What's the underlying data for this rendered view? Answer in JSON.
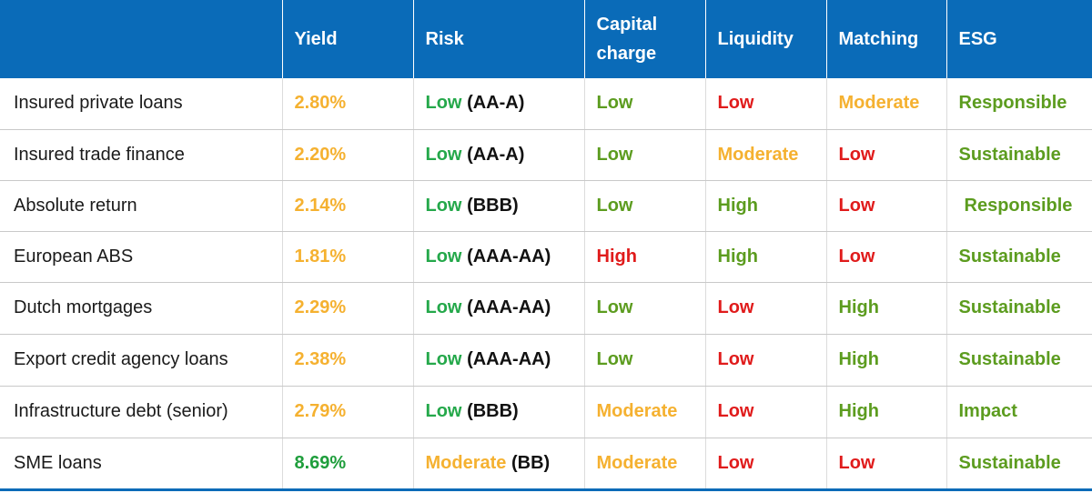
{
  "header": {
    "asset": "",
    "yield": "Yield",
    "risk": "Risk",
    "capital_line1": "Capital",
    "capital_line2": "charge",
    "liquidity": "Liquidity",
    "matching": "Matching",
    "esg": "ESG"
  },
  "colors": {
    "header_bg": "#0a6bb8",
    "green": "#24a84a",
    "olive_green": "#5c9c1f",
    "orange": "#f5b130",
    "red": "#e01b1b"
  },
  "rows": [
    {
      "asset": "Insured private loans",
      "yield": "2.80%",
      "risk": "Low",
      "rating": "(AA-A)",
      "capital": "Low",
      "liquidity": "Low",
      "matching": "Moderate",
      "esg": "Responsible"
    },
    {
      "asset": "Insured trade finance",
      "yield": "2.20%",
      "risk": "Low",
      "rating": "(AA-A)",
      "capital": "Low",
      "liquidity": "Moderate",
      "matching": "Low",
      "esg": "Sustainable"
    },
    {
      "asset": "Absolute return",
      "yield": "2.14%",
      "risk": "Low",
      "rating": "(BBB)",
      "capital": "Low",
      "liquidity": "High",
      "matching": "Low",
      "esg": "Responsible"
    },
    {
      "asset": "European ABS",
      "yield": "1.81%",
      "risk": "Low",
      "rating": "(AAA-AA)",
      "capital": "High",
      "liquidity": "High",
      "matching": "Low",
      "esg": "Sustainable"
    },
    {
      "asset": "Dutch mortgages",
      "yield": "2.29%",
      "risk": "Low",
      "rating": "(AAA-AA)",
      "capital": "Low",
      "liquidity": "Low",
      "matching": "High",
      "esg": "Sustainable"
    },
    {
      "asset": "Export credit agency loans",
      "yield": "2.38%",
      "risk": "Low",
      "rating": "(AAA-AA)",
      "capital": "Low",
      "liquidity": "Low",
      "matching": "High",
      "esg": "Sustainable"
    },
    {
      "asset": "Infrastructure debt (senior)",
      "yield": "2.79%",
      "risk": "Low",
      "rating": "(BBB)",
      "capital": "Moderate",
      "liquidity": "Low",
      "matching": "High",
      "esg": "Impact"
    },
    {
      "asset": "SME loans",
      "yield": "8.69%",
      "risk": "Moderate",
      "rating": "(BB)",
      "capital": "Moderate",
      "liquidity": "Low",
      "matching": "Low",
      "esg": "Sustainable"
    }
  ]
}
